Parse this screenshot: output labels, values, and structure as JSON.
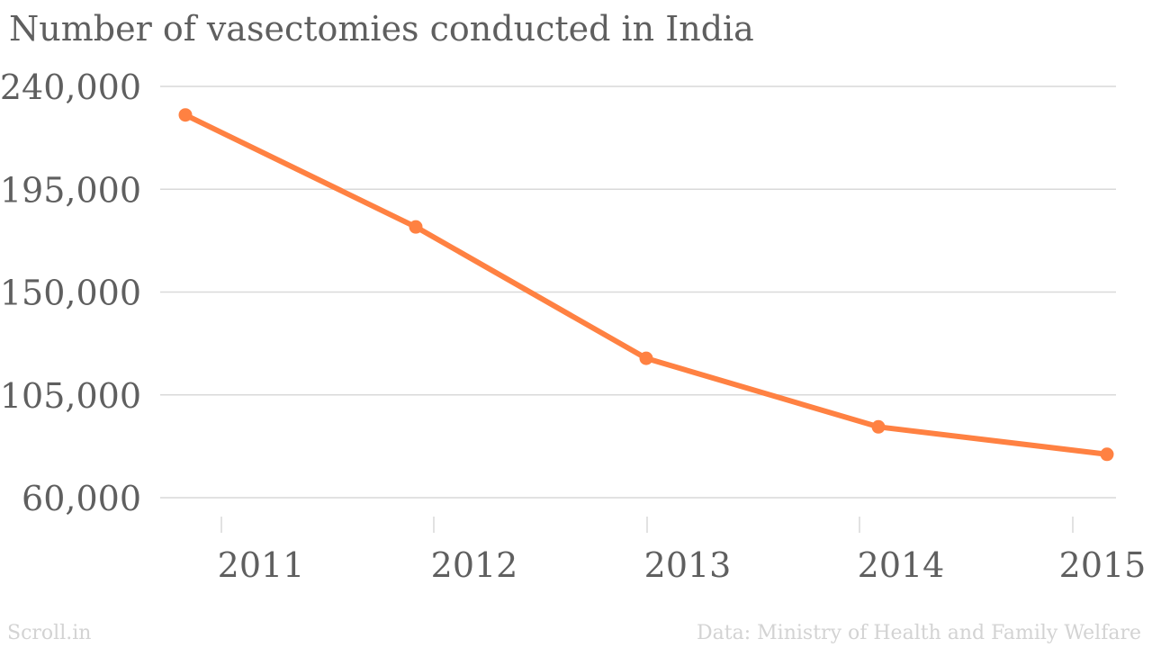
{
  "chart_data": {
    "type": "line",
    "title": "Number of vasectomies conducted in India",
    "xlabel": "",
    "ylabel": "",
    "categories": [
      "2011",
      "2012",
      "2013",
      "2014",
      "2015"
    ],
    "series": [
      {
        "values": [
          227500,
          178500,
          121000,
          91000,
          79000
        ]
      }
    ],
    "ylim": [
      60000,
      240000
    ],
    "yticks": [
      60000,
      105000,
      150000,
      195000,
      240000
    ],
    "ytick_labels": [
      "60,000",
      "105,000",
      "150,000",
      "195,000",
      "240,000"
    ],
    "grid": true,
    "legend": "none",
    "colors": {
      "line": "#ff8142",
      "grid": "#d9d9d9",
      "text": "#5f5f5f",
      "footer": "#d3d3d3"
    }
  },
  "footer": {
    "source_brand": "Scroll.in",
    "data_source": "Data: Ministry of Health and Family Welfare"
  }
}
